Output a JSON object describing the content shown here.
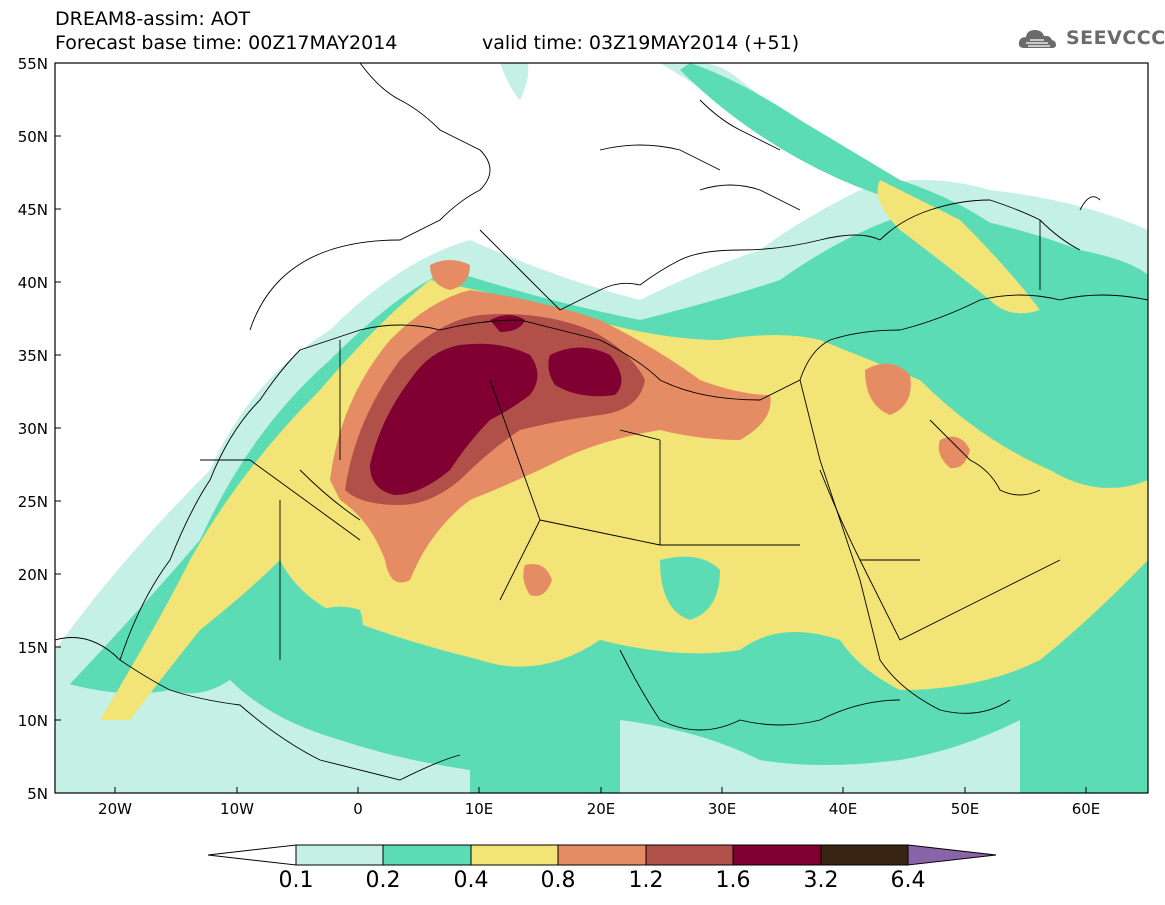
{
  "header": {
    "title": "DREAM8-assim: AOT",
    "base_time": "Forecast base time: 00Z17MAY2014",
    "valid_time": "valid time: 03Z19MAY2014 (+51)",
    "logo_text": "SEEVCCC"
  },
  "axes": {
    "lat_labels": [
      "55N",
      "50N",
      "45N",
      "40N",
      "35N",
      "30N",
      "25N",
      "20N",
      "15N",
      "10N",
      "5N"
    ],
    "lon_labels": [
      "20W",
      "10W",
      "0",
      "10E",
      "20E",
      "30E",
      "40E",
      "50E",
      "60E"
    ]
  },
  "colorbar": {
    "labels": [
      "0.1",
      "0.2",
      "0.4",
      "0.8",
      "1.2",
      "1.6",
      "3.2",
      "6.4"
    ],
    "colors": [
      "#ffffff",
      "#c4f0e6",
      "#5cdcb4",
      "#f2e476",
      "#e68c64",
      "#b05048",
      "#800032",
      "#3a2414",
      "#8a64a8"
    ]
  },
  "map": {
    "extent": {
      "lon_min": -25,
      "lon_max": 65,
      "lat_min": 5,
      "lat_max": 55
    },
    "field": "AOT"
  }
}
